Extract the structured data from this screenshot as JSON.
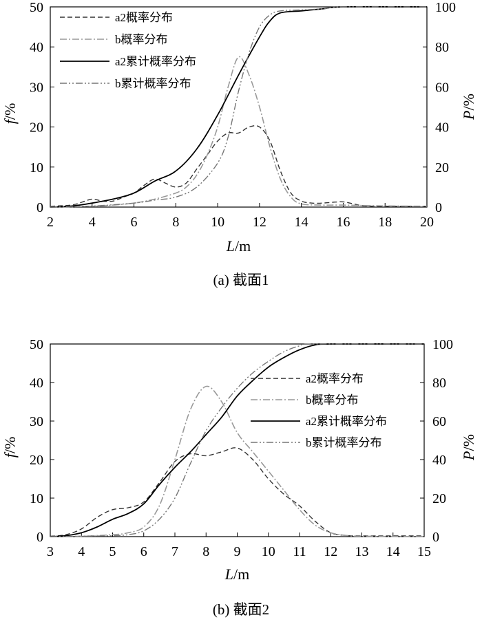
{
  "figure": {
    "panels": [
      {
        "caption": "(a) 截面1",
        "xlabel": {
          "italic": "L",
          "rest": "/m"
        },
        "ylabel_left": {
          "italic": "f",
          "rest": "/%"
        },
        "ylabel_right": {
          "italic": "P",
          "rest": "/%"
        },
        "legend": [
          "a2概率分布",
          "b概率分布",
          "a2累计概率分布",
          "b累计概率分布"
        ]
      },
      {
        "caption": "(b) 截面2",
        "xlabel": {
          "italic": "L",
          "rest": "/m"
        },
        "ylabel_left": {
          "italic": "f",
          "rest": "/%"
        },
        "ylabel_right": {
          "italic": "P",
          "rest": "/%"
        },
        "legend": [
          "a2概率分布",
          "b概率分布",
          "a2累计概率分布",
          "b累计概率分布"
        ]
      }
    ]
  },
  "chart_data": [
    {
      "type": "line",
      "legend_position": "top-left",
      "grid": false,
      "xlim": [
        2,
        20
      ],
      "xticks": [
        2,
        4,
        6,
        8,
        10,
        12,
        14,
        16,
        18,
        20
      ],
      "ylim_left": [
        0,
        50
      ],
      "yticks_left": [
        0,
        10,
        20,
        30,
        40,
        50
      ],
      "ylim_right": [
        0,
        100
      ],
      "yticks_right": [
        0,
        20,
        40,
        60,
        80,
        100
      ],
      "series": [
        {
          "name": "a2概率分布",
          "axis": "left",
          "color": "#333333",
          "dash": "dashed",
          "points": [
            [
              2,
              0.2
            ],
            [
              3,
              0.5
            ],
            [
              3.5,
              1.2
            ],
            [
              4,
              2
            ],
            [
              4.5,
              1.5
            ],
            [
              5,
              1.5
            ],
            [
              5.5,
              2.5
            ],
            [
              6,
              3.5
            ],
            [
              6.5,
              5.5
            ],
            [
              7,
              7
            ],
            [
              7.5,
              6
            ],
            [
              8,
              5
            ],
            [
              8.5,
              6
            ],
            [
              9,
              9.5
            ],
            [
              9.5,
              13
            ],
            [
              10,
              16.5
            ],
            [
              10.5,
              18.5
            ],
            [
              11,
              18.5
            ],
            [
              11.5,
              20
            ],
            [
              12,
              20
            ],
            [
              12.5,
              16.5
            ],
            [
              13,
              9
            ],
            [
              13.5,
              3.5
            ],
            [
              14,
              1.5
            ],
            [
              14.5,
              1
            ],
            [
              15,
              1
            ],
            [
              15.5,
              1.2
            ],
            [
              16,
              1.3
            ],
            [
              16.5,
              0.8
            ],
            [
              17,
              0.3
            ],
            [
              18,
              0.2
            ],
            [
              20,
              0.2
            ]
          ]
        },
        {
          "name": "b概率分布",
          "axis": "left",
          "color": "#999999",
          "dash": "dashdot",
          "points": [
            [
              2,
              0
            ],
            [
              4,
              0.2
            ],
            [
              5,
              0.5
            ],
            [
              6,
              1
            ],
            [
              7,
              2
            ],
            [
              8,
              3.5
            ],
            [
              8.5,
              5
            ],
            [
              9,
              8
            ],
            [
              9.5,
              13
            ],
            [
              10,
              20
            ],
            [
              10.5,
              30
            ],
            [
              11,
              37.5
            ],
            [
              11.5,
              33
            ],
            [
              12,
              25
            ],
            [
              12.5,
              15
            ],
            [
              13,
              7
            ],
            [
              13.5,
              2.5
            ],
            [
              14,
              0.8
            ],
            [
              15,
              0.5
            ],
            [
              16,
              0.5
            ],
            [
              18,
              0.3
            ],
            [
              20,
              0.2
            ]
          ]
        },
        {
          "name": "a2累计概率分布",
          "axis": "right",
          "color": "#000000",
          "dash": "solid",
          "points": [
            [
              2,
              0
            ],
            [
              3,
              0.5
            ],
            [
              4,
              2
            ],
            [
              5,
              4
            ],
            [
              6,
              7
            ],
            [
              7,
              13
            ],
            [
              8,
              18
            ],
            [
              9,
              29
            ],
            [
              10,
              46
            ],
            [
              11,
              66
            ],
            [
              12,
              85
            ],
            [
              12.5,
              93
            ],
            [
              13,
              97
            ],
            [
              14,
              98
            ],
            [
              15,
              99
            ],
            [
              16,
              100
            ],
            [
              20,
              100
            ]
          ]
        },
        {
          "name": "b累计概率分布",
          "axis": "right",
          "color": "#777777",
          "dash": "dashdotdot",
          "points": [
            [
              2,
              0
            ],
            [
              4,
              0.5
            ],
            [
              6,
              2
            ],
            [
              7,
              3.5
            ],
            [
              8,
              5
            ],
            [
              9,
              10
            ],
            [
              10,
              22
            ],
            [
              10.5,
              35
            ],
            [
              11,
              58
            ],
            [
              11.5,
              77
            ],
            [
              12,
              90
            ],
            [
              12.5,
              96
            ],
            [
              13,
              98
            ],
            [
              14,
              98.5
            ],
            [
              15,
              99
            ],
            [
              16,
              100
            ],
            [
              20,
              100
            ]
          ]
        }
      ]
    },
    {
      "type": "line",
      "legend_position": "center-right",
      "grid": false,
      "xlim": [
        3,
        15
      ],
      "xticks": [
        3,
        4,
        5,
        6,
        7,
        8,
        9,
        10,
        11,
        12,
        13,
        14,
        15
      ],
      "ylim_left": [
        0,
        50
      ],
      "yticks_left": [
        0,
        10,
        20,
        30,
        40,
        50
      ],
      "ylim_right": [
        0,
        100
      ],
      "yticks_right": [
        0,
        20,
        40,
        60,
        80,
        100
      ],
      "series": [
        {
          "name": "a2概率分布",
          "axis": "left",
          "color": "#333333",
          "dash": "dashed",
          "points": [
            [
              3,
              0.1
            ],
            [
              3.5,
              0.5
            ],
            [
              4,
              2
            ],
            [
              4.5,
              5
            ],
            [
              5,
              7
            ],
            [
              5.5,
              7.5
            ],
            [
              6,
              9
            ],
            [
              6.5,
              14
            ],
            [
              7,
              19.5
            ],
            [
              7.5,
              21.5
            ],
            [
              8,
              21
            ],
            [
              8.5,
              22
            ],
            [
              9,
              23
            ],
            [
              9.5,
              20
            ],
            [
              10,
              15
            ],
            [
              10.5,
              11
            ],
            [
              11,
              8
            ],
            [
              11.5,
              4
            ],
            [
              12,
              1
            ],
            [
              12.5,
              0.3
            ],
            [
              13,
              0.2
            ],
            [
              15,
              0.2
            ]
          ]
        },
        {
          "name": "b概率分布",
          "axis": "left",
          "color": "#999999",
          "dash": "dashdot",
          "points": [
            [
              3,
              0
            ],
            [
              4,
              0.1
            ],
            [
              5,
              0.5
            ],
            [
              5.5,
              1
            ],
            [
              6,
              2.5
            ],
            [
              6.5,
              8
            ],
            [
              7,
              20
            ],
            [
              7.5,
              33
            ],
            [
              8,
              39
            ],
            [
              8.5,
              35
            ],
            [
              9,
              27
            ],
            [
              9.5,
              22
            ],
            [
              10,
              17
            ],
            [
              10.5,
              12
            ],
            [
              11,
              7
            ],
            [
              11.5,
              3
            ],
            [
              12,
              1
            ],
            [
              12.5,
              0.3
            ],
            [
              13,
              0.1
            ],
            [
              15,
              0
            ]
          ]
        },
        {
          "name": "a2累计概率分布",
          "axis": "right",
          "color": "#000000",
          "dash": "solid",
          "points": [
            [
              3,
              0
            ],
            [
              3.5,
              0.5
            ],
            [
              4,
              2
            ],
            [
              4.5,
              5
            ],
            [
              5,
              9
            ],
            [
              5.5,
              12
            ],
            [
              6,
              17
            ],
            [
              6.5,
              27
            ],
            [
              7,
              36
            ],
            [
              7.5,
              44
            ],
            [
              8,
              53
            ],
            [
              8.5,
              62
            ],
            [
              9,
              73
            ],
            [
              9.5,
              81
            ],
            [
              10,
              88
            ],
            [
              10.5,
              93
            ],
            [
              11,
              97
            ],
            [
              11.5,
              99.5
            ],
            [
              12,
              100
            ],
            [
              15,
              100
            ]
          ]
        },
        {
          "name": "b累计概率分布",
          "axis": "right",
          "color": "#777777",
          "dash": "dashdotdot",
          "points": [
            [
              3,
              0
            ],
            [
              4,
              0.2
            ],
            [
              5,
              0.5
            ],
            [
              5.5,
              1
            ],
            [
              6,
              3
            ],
            [
              6.5,
              9
            ],
            [
              7,
              20
            ],
            [
              7.5,
              38
            ],
            [
              8,
              55
            ],
            [
              8.5,
              67
            ],
            [
              9,
              77
            ],
            [
              9.5,
              85
            ],
            [
              10,
              91
            ],
            [
              10.5,
              96
            ],
            [
              11,
              99
            ],
            [
              11.5,
              100
            ],
            [
              15,
              100
            ]
          ]
        }
      ]
    }
  ]
}
